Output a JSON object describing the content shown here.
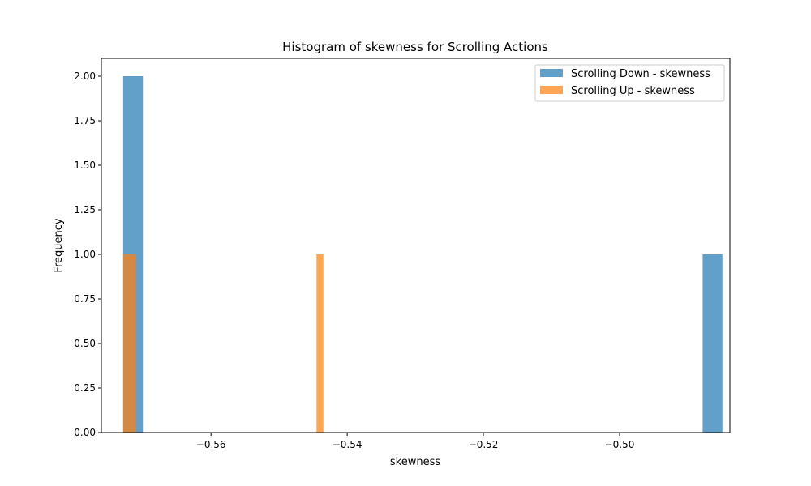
{
  "chart_data": {
    "type": "bar",
    "title": "Histogram of skewness for Scrolling Actions",
    "xlabel": "skewness",
    "ylabel": "Frequency",
    "xlim": [
      -0.5761,
      -0.4838
    ],
    "ylim": [
      0,
      2.1
    ],
    "x_ticks": [
      -0.56,
      -0.54,
      -0.52,
      -0.5
    ],
    "x_tick_labels": [
      "−0.56",
      "−0.54",
      "−0.52",
      "−0.50"
    ],
    "y_ticks": [
      0,
      0.25,
      0.5,
      0.75,
      1.0,
      1.25,
      1.5,
      1.75,
      2.0
    ],
    "y_tick_labels": [
      "0.00",
      "0.25",
      "0.50",
      "0.75",
      "1.00",
      "1.25",
      "1.50",
      "1.75",
      "2.00"
    ],
    "grid": false,
    "legend_position": "top-right",
    "series": [
      {
        "name": "Scrolling Down - skewness",
        "color": "#1f77b4",
        "opacity": 0.7,
        "bins": [
          {
            "x0": -0.5729,
            "x1": -0.57,
            "count": 2
          },
          {
            "x0": -0.4878,
            "x1": -0.4849,
            "count": 1
          }
        ]
      },
      {
        "name": "Scrolling Up - skewness",
        "color": "#ff7f0e",
        "opacity": 0.7,
        "bins": [
          {
            "x0": -0.5729,
            "x1": -0.571,
            "count": 1
          },
          {
            "x0": -0.5445,
            "x1": -0.5435,
            "count": 1
          }
        ]
      }
    ]
  }
}
